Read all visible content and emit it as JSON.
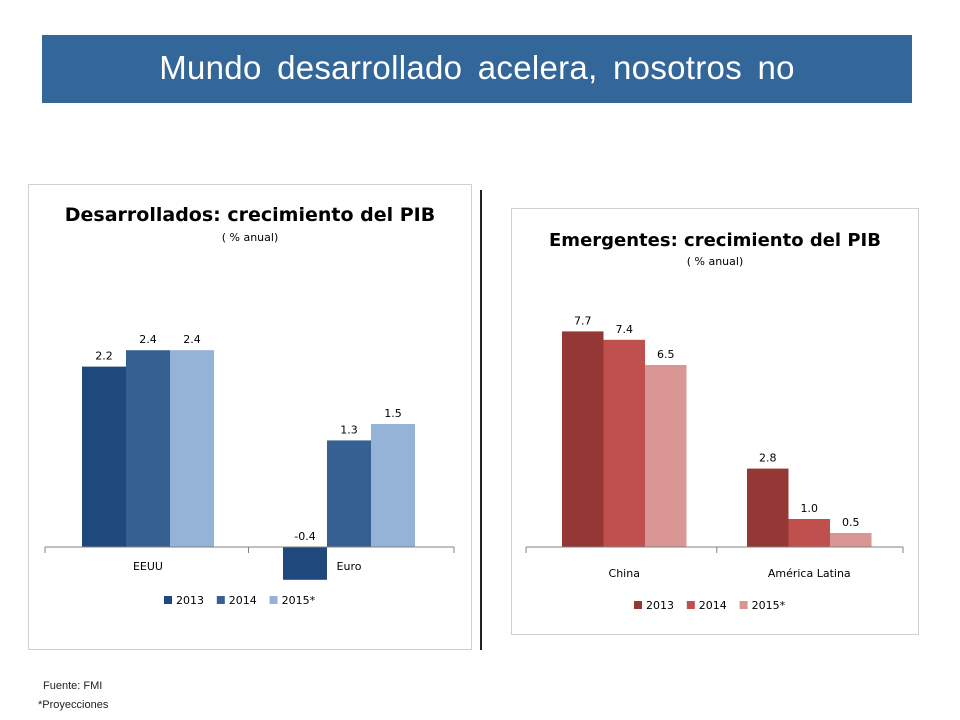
{
  "slide": {
    "title": "Mundo desarrollado acelera, nosotros no",
    "source": "Fuente: FMI",
    "footnote": "*Proyecciones"
  },
  "chart_data": [
    {
      "type": "bar",
      "title": "Desarrollados: crecimiento del PIB",
      "subtitle": "( % anual)",
      "categories": [
        "EEUU",
        "Euro"
      ],
      "series": [
        {
          "name": "2013",
          "values": [
            2.2,
            -0.4
          ],
          "color": "#1F497D"
        },
        {
          "name": "2014",
          "values": [
            2.4,
            1.3
          ],
          "color": "#376092"
        },
        {
          "name": "2015*",
          "values": [
            2.4,
            1.5
          ],
          "color": "#95B3D7"
        }
      ],
      "data_labels": [
        [
          "2.2",
          "2.4",
          "2.4"
        ],
        [
          "-0.4",
          "1.3",
          "1.5"
        ]
      ],
      "ylim": [
        -0.4,
        2.6
      ],
      "grid": false,
      "legend": "bottom"
    },
    {
      "type": "bar",
      "title": "Emergentes: crecimiento del PIB",
      "subtitle": "( % anual)",
      "categories": [
        "China",
        "América Latina"
      ],
      "series": [
        {
          "name": "2013",
          "values": [
            7.7,
            2.8
          ],
          "color": "#953735"
        },
        {
          "name": "2014",
          "values": [
            7.4,
            1.0
          ],
          "color": "#C0504D"
        },
        {
          "name": "2015*",
          "values": [
            6.5,
            0.5
          ],
          "color": "#DA9694"
        }
      ],
      "data_labels": [
        [
          "7.7",
          "7.4",
          "6.5"
        ],
        [
          "2.8",
          "1.0",
          "0.5"
        ]
      ],
      "ylim": [
        0,
        8.5
      ],
      "grid": false,
      "legend": "bottom"
    }
  ]
}
